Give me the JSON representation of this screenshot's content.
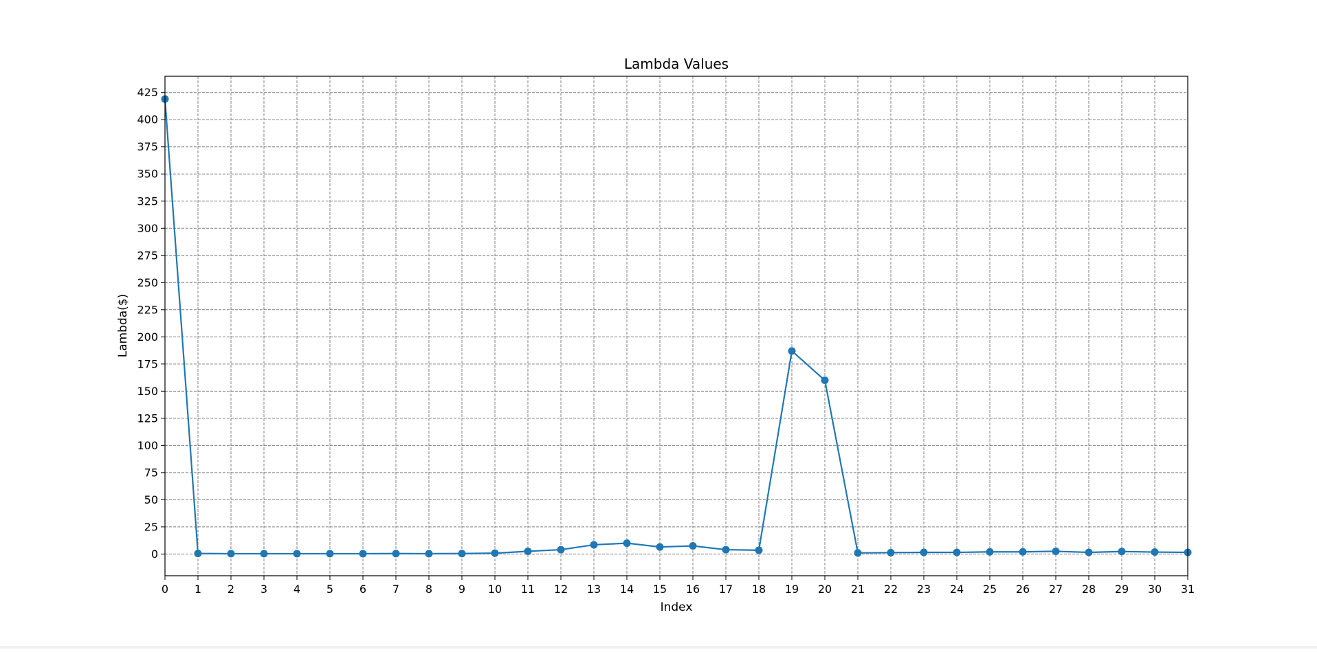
{
  "chart_data": {
    "type": "line",
    "title": "Lambda Values",
    "xlabel": "Index",
    "ylabel": "Lambda($)",
    "x": [
      0,
      1,
      2,
      3,
      4,
      5,
      6,
      7,
      8,
      9,
      10,
      11,
      12,
      13,
      14,
      15,
      16,
      17,
      18,
      19,
      20,
      21,
      22,
      23,
      24,
      25,
      26,
      27,
      28,
      29,
      30,
      31
    ],
    "series": [
      {
        "values": [
          419,
          0.5,
          0.3,
          0.3,
          0.3,
          0.3,
          0.3,
          0.4,
          0.3,
          0.4,
          0.8,
          2.5,
          4,
          8.5,
          10,
          6.5,
          7.5,
          4,
          3.5,
          187,
          160,
          1,
          1.3,
          1.5,
          1.5,
          2,
          2,
          2.5,
          1.5,
          2.3,
          1.8,
          1.5
        ]
      }
    ],
    "xlim": [
      0,
      31
    ],
    "ylim": [
      -20,
      440
    ],
    "xticks": [
      0,
      1,
      2,
      3,
      4,
      5,
      6,
      7,
      8,
      9,
      10,
      11,
      12,
      13,
      14,
      15,
      16,
      17,
      18,
      19,
      20,
      21,
      22,
      23,
      24,
      25,
      26,
      27,
      28,
      29,
      30,
      31
    ],
    "yticks": [
      0,
      25,
      50,
      75,
      100,
      125,
      150,
      175,
      200,
      225,
      250,
      275,
      300,
      325,
      350,
      375,
      400,
      425
    ],
    "grid": true,
    "markers": true,
    "line_color": "#1f77b4"
  }
}
